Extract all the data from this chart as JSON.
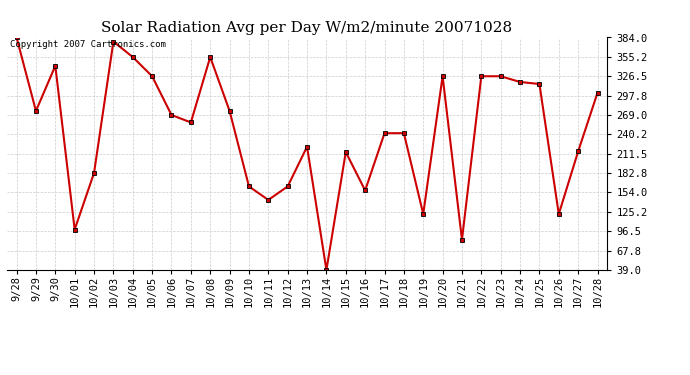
{
  "title": "Solar Radiation Avg per Day W/m2/minute 20071028",
  "copyright_text": "Copyright 2007 Cartronics.com",
  "x_labels": [
    "9/28",
    "9/29",
    "9/30",
    "10/01",
    "10/02",
    "10/03",
    "10/04",
    "10/05",
    "10/06",
    "10/07",
    "10/08",
    "10/09",
    "10/10",
    "10/11",
    "10/12",
    "10/13",
    "10/14",
    "10/15",
    "10/16",
    "10/17",
    "10/18",
    "10/19",
    "10/20",
    "10/21",
    "10/22",
    "10/23",
    "10/24",
    "10/25",
    "10/26",
    "10/27",
    "10/28"
  ],
  "values": [
    384.0,
    275.0,
    342.0,
    99.0,
    183.0,
    378.0,
    355.0,
    326.5,
    269.0,
    258.0,
    355.0,
    275.0,
    163.0,
    143.0,
    163.0,
    222.0,
    39.0,
    214.0,
    157.0,
    242.0,
    242.0,
    122.0,
    326.5,
    84.0,
    326.5,
    326.5,
    318.0,
    315.0,
    122.0,
    215.0,
    302.0
  ],
  "yticks": [
    39.0,
    67.8,
    96.5,
    125.2,
    154.0,
    182.8,
    211.5,
    240.2,
    269.0,
    297.8,
    326.5,
    355.2,
    384.0
  ],
  "ylim": [
    39.0,
    384.0
  ],
  "line_color": "#cc0000",
  "marker": "s",
  "marker_size": 2.5,
  "background_color": "#ffffff",
  "grid_color": "#c0c0c0",
  "title_fontsize": 11,
  "tick_fontsize": 7.5,
  "copyright_fontsize": 6.5,
  "figwidth": 6.9,
  "figheight": 3.75,
  "dpi": 100
}
